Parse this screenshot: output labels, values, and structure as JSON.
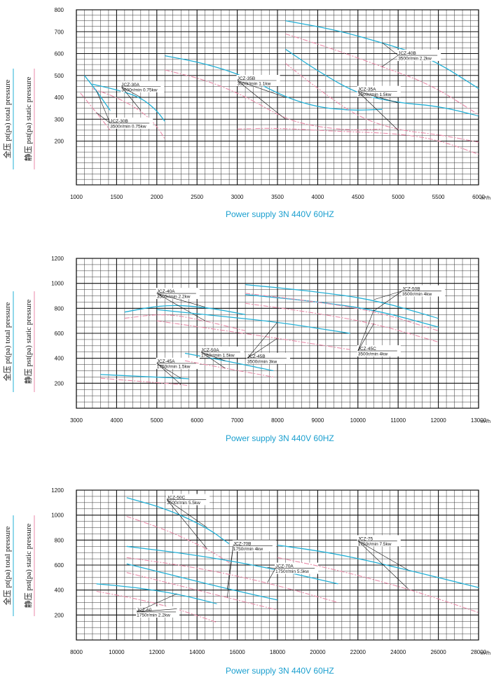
{
  "chart_data": [
    {
      "type": "line",
      "xlim": [
        1000,
        6000
      ],
      "ylim": [
        0,
        800
      ],
      "xticks": [
        1000,
        1500,
        2000,
        2500,
        3000,
        3500,
        4000,
        4500,
        5000,
        5500,
        6000
      ],
      "yticks": [
        200,
        300,
        400,
        500,
        600,
        700,
        800
      ],
      "xunit": "m³/h",
      "ylabel_total": "全压 pt(pa) total pressure",
      "ylabel_static": "静压 pst(pa) static pressure",
      "caption": "Power supply   3N 440V  60HZ",
      "grid": true,
      "series": [
        {
          "name": "JCZ-30A",
          "note": "3500r/min 0.75kw",
          "total": [
            [
              1200,
              460
            ],
            [
              1500,
              435
            ],
            [
              1800,
              400
            ],
            [
              2000,
              340
            ],
            [
              2100,
              290
            ]
          ],
          "static": [
            [
              1200,
              440
            ],
            [
              1500,
              400
            ],
            [
              1800,
              340
            ],
            [
              2000,
              270
            ],
            [
              2100,
              210
            ]
          ]
        },
        {
          "name": "JCZ-30B",
          "note": "3500r/min 0.75kw",
          "total": [
            [
              1100,
              500
            ],
            [
              1250,
              430
            ],
            [
              1420,
              340
            ]
          ],
          "static": [
            [
              1050,
              420
            ],
            [
              1250,
              330
            ],
            [
              1420,
              250
            ]
          ]
        },
        {
          "name": "JCZ-35B",
          "note": "3500r/min 1.1kw",
          "total": [
            [
              2100,
              590
            ],
            [
              2600,
              555
            ],
            [
              3100,
              495
            ],
            [
              3600,
              400
            ],
            [
              4000,
              355
            ],
            [
              4400,
              340
            ],
            [
              4800,
              345
            ]
          ],
          "static": [
            [
              2100,
              525
            ],
            [
              2600,
              480
            ],
            [
              3100,
              405
            ],
            [
              3600,
              300
            ],
            [
              4000,
              265
            ],
            [
              4400,
              250
            ],
            [
              4800,
              255
            ]
          ]
        },
        {
          "name": "JCZ-35A",
          "note": "3500r/min 1.5kw",
          "total": [
            [
              3600,
              620
            ],
            [
              4000,
              520
            ],
            [
              4500,
              415
            ],
            [
              5000,
              375
            ],
            [
              5500,
              360
            ],
            [
              6000,
              315
            ]
          ],
          "static": [
            [
              3600,
              555
            ],
            [
              4000,
              440
            ],
            [
              4500,
              310
            ],
            [
              5000,
              250
            ],
            [
              5500,
              230
            ],
            [
              6000,
              195
            ]
          ]
        },
        {
          "name": "JCZ-40B",
          "note": "3500r/min 2.2kw",
          "total": [
            [
              3600,
              750
            ],
            [
              4200,
              710
            ],
            [
              4800,
              650
            ],
            [
              5400,
              580
            ],
            [
              6000,
              440
            ]
          ],
          "static": [
            [
              3600,
              690
            ],
            [
              4200,
              620
            ],
            [
              4800,
              540
            ],
            [
              5400,
              460
            ],
            [
              6000,
              320
            ]
          ]
        },
        {
          "name": "",
          "note": "",
          "total": [],
          "static": [
            [
              3000,
              255
            ],
            [
              3500,
              260
            ],
            [
              4200,
              245
            ],
            [
              5000,
              235
            ],
            [
              5500,
              205
            ],
            [
              6000,
              140
            ]
          ]
        }
      ]
    },
    {
      "type": "line",
      "xlim": [
        3000,
        13000
      ],
      "ylim": [
        0,
        1200
      ],
      "xticks": [
        3000,
        4000,
        5000,
        6000,
        7000,
        8000,
        9000,
        10000,
        11000,
        12000,
        13000
      ],
      "yticks": [
        200,
        400,
        600,
        800,
        1000,
        1200
      ],
      "xunit": "m³/h",
      "ylabel_total": "全压 pt(pa) total pressure",
      "ylabel_static": "静压 pst(pa) static pressure",
      "caption": "Power supply   3N 440V  60HZ",
      "grid": true,
      "series": [
        {
          "name": "JCZ-40A",
          "note": "3500r/min 2.2kw",
          "total": [
            [
              4200,
              770
            ],
            [
              5200,
              830
            ],
            [
              6200,
              810
            ],
            [
              7200,
              750
            ]
          ],
          "static": [
            [
              4200,
              720
            ],
            [
              5200,
              760
            ],
            [
              6200,
              700
            ],
            [
              7200,
              620
            ]
          ]
        },
        {
          "name": "JCZ-45A",
          "note": "1750r/min 1.5kw",
          "total": [
            [
              3600,
              270
            ],
            [
              4600,
              255
            ],
            [
              5600,
              240
            ],
            [
              5800,
              235
            ]
          ],
          "static": [
            [
              3600,
              240
            ],
            [
              4600,
              215
            ],
            [
              5600,
              190
            ],
            [
              5800,
              180
            ]
          ]
        },
        {
          "name": "JCZ-50A",
          "note": "1750r/min 1.5kw",
          "total": [
            [
              5700,
              440
            ],
            [
              6700,
              380
            ],
            [
              7900,
              300
            ]
          ],
          "static": [
            [
              5700,
              380
            ],
            [
              6700,
              320
            ],
            [
              7900,
              250
            ]
          ]
        },
        {
          "name": "JCZ-45B",
          "note": "3500r/min 3kw",
          "total": [
            [
              5000,
              790
            ],
            [
              6500,
              740
            ],
            [
              8000,
              690
            ],
            [
              9800,
              600
            ]
          ],
          "static": [
            [
              5000,
              700
            ],
            [
              6500,
              630
            ],
            [
              8000,
              560
            ],
            [
              9800,
              470
            ]
          ]
        },
        {
          "name": "JCZ-45C",
          "note": "3500r/min 4kw",
          "total": [
            [
              7200,
              910
            ],
            [
              8800,
              860
            ],
            [
              10400,
              790
            ],
            [
              12000,
              650
            ]
          ],
          "static": [
            [
              7200,
              840
            ],
            [
              8800,
              770
            ],
            [
              10400,
              680
            ],
            [
              12000,
              530
            ]
          ]
        },
        {
          "name": "JCZ-50B",
          "note": "3500r/min 4kw",
          "total": [
            [
              7200,
              990
            ],
            [
              8800,
              940
            ],
            [
              10400,
              870
            ],
            [
              12000,
              720
            ]
          ],
          "static": [
            [
              7200,
              920
            ],
            [
              8800,
              860
            ],
            [
              10400,
              780
            ],
            [
              12000,
              620
            ]
          ]
        }
      ]
    },
    {
      "type": "line",
      "xlim": [
        8000,
        28000
      ],
      "ylim": [
        0,
        1200
      ],
      "xticks": [
        8000,
        10000,
        12000,
        14000,
        16000,
        18000,
        20000,
        22000,
        24000,
        26000,
        28000
      ],
      "yticks": [
        200,
        400,
        600,
        800,
        1000,
        1200
      ],
      "xunit": "m³/h",
      "ylabel_total": "全压 pt(pa) total pressure",
      "ylabel_static": "静压 pst(pa) static pressure",
      "caption": "Power supply   3N 440V  60HZ",
      "grid": true,
      "series": [
        {
          "name": "JCZ-50C",
          "note": "3500r/min 5.5kw",
          "total": [
            [
              10500,
              1140
            ],
            [
              12500,
              1050
            ],
            [
              14500,
              900
            ],
            [
              15600,
              770
            ]
          ],
          "static": [
            [
              10500,
              990
            ],
            [
              12500,
              880
            ],
            [
              14500,
              730
            ],
            [
              15600,
              620
            ]
          ]
        },
        {
          "name": "JCZ-60",
          "note": "1750r/min 2.2kw",
          "total": [
            [
              9000,
              450
            ],
            [
              11000,
              420
            ],
            [
              13000,
              370
            ],
            [
              15000,
              290
            ]
          ],
          "static": [
            [
              9000,
              390
            ],
            [
              11000,
              330
            ],
            [
              13000,
              250
            ],
            [
              15000,
              140
            ]
          ]
        },
        {
          "name": "JCZ-70B",
          "note": "1750r/min 4kw",
          "total": [
            [
              10500,
              610
            ],
            [
              13000,
              510
            ],
            [
              15500,
              410
            ],
            [
              18000,
              320
            ]
          ],
          "static": [
            [
              10500,
              540
            ],
            [
              13000,
              440
            ],
            [
              15500,
              340
            ],
            [
              18000,
              240
            ]
          ]
        },
        {
          "name": "JCZ-70A",
          "note": "1750r/min 5.5kw",
          "total": [
            [
              10500,
              750
            ],
            [
              14000,
              680
            ],
            [
              17500,
              580
            ],
            [
              21000,
              450
            ]
          ],
          "static": [
            [
              10500,
              660
            ],
            [
              14000,
              580
            ],
            [
              17500,
              460
            ],
            [
              21000,
              300
            ]
          ]
        },
        {
          "name": "JCZ-75",
          "note": "1750r/min 7.5kw",
          "total": [
            [
              18000,
              760
            ],
            [
              21000,
              690
            ],
            [
              24500,
              560
            ],
            [
              28000,
              420
            ]
          ],
          "static": [
            [
              18000,
              660
            ],
            [
              21000,
              560
            ],
            [
              24500,
              410
            ],
            [
              28000,
              220
            ]
          ]
        }
      ]
    }
  ]
}
